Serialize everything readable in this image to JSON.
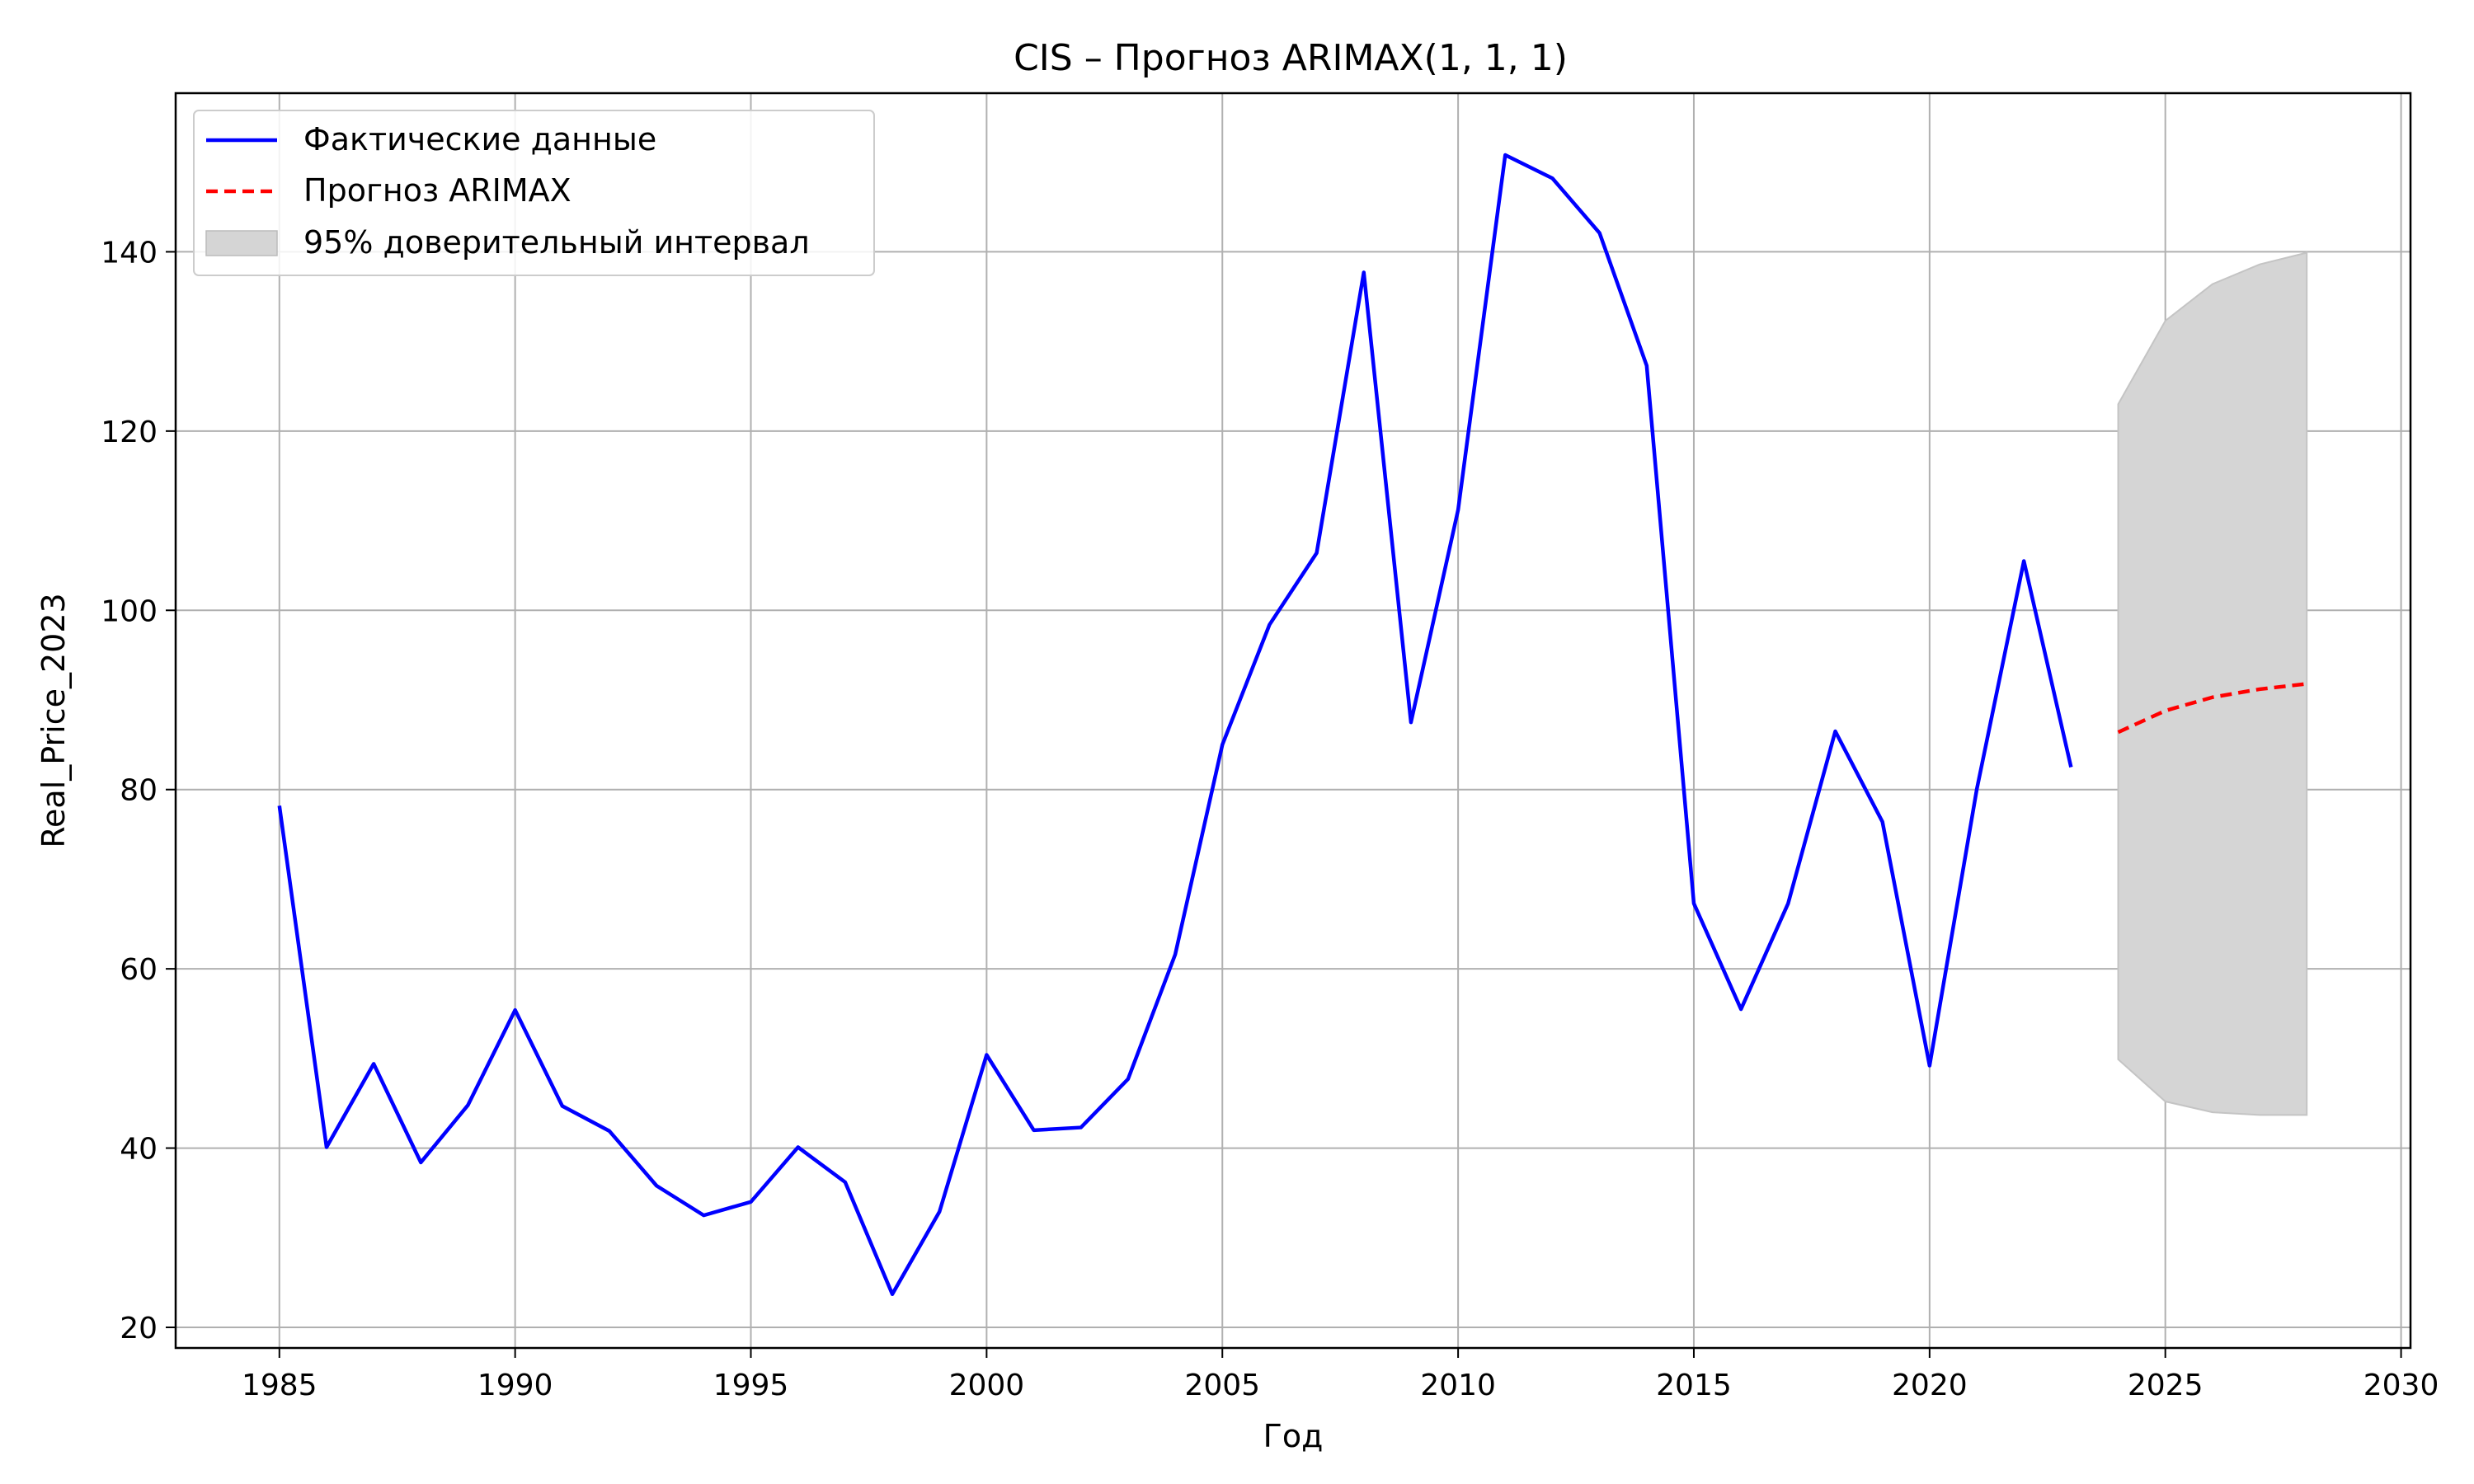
{
  "chart_data": {
    "type": "line",
    "title": "CIS – Прогноз ARIMAX(1, 1, 1)",
    "xlabel": "Год",
    "ylabel": "Real_Price_2023",
    "xlim": [
      1982.8,
      2030.2
    ],
    "ylim": [
      17.7,
      157.7
    ],
    "xticks": [
      1985,
      1990,
      1995,
      2000,
      2005,
      2010,
      2015,
      2020,
      2025,
      2030
    ],
    "yticks": [
      20,
      40,
      60,
      80,
      100,
      120,
      140
    ],
    "grid": true,
    "legend_position": "top-left",
    "series": [
      {
        "name": "Фактические данные",
        "style": "solid",
        "color": "#0000ff",
        "x": [
          1985,
          1986,
          1987,
          1988,
          1989,
          1990,
          1991,
          1992,
          1993,
          1994,
          1995,
          1996,
          1997,
          1998,
          1999,
          2000,
          2001,
          2002,
          2003,
          2004,
          2005,
          2006,
          2007,
          2008,
          2009,
          2010,
          2011,
          2012,
          2013,
          2014,
          2015,
          2016,
          2017,
          2018,
          2019,
          2020,
          2021,
          2022,
          2023
        ],
        "values": [
          78.2,
          40.1,
          49.4,
          38.4,
          44.8,
          55.4,
          44.7,
          41.9,
          35.8,
          32.5,
          34.0,
          40.1,
          36.2,
          23.7,
          32.9,
          50.4,
          42.0,
          42.3,
          47.7,
          61.6,
          85.0,
          98.4,
          106.4,
          137.7,
          87.5,
          111.2,
          150.8,
          148.2,
          142.1,
          127.3,
          67.3,
          55.5,
          67.3,
          86.5,
          76.4,
          49.2,
          80.0,
          105.5,
          82.5
        ]
      },
      {
        "name": "Прогноз ARIMAX",
        "style": "dashed",
        "color": "#ff0000",
        "x": [
          2024,
          2025,
          2026,
          2027,
          2028
        ],
        "values": [
          86.4,
          88.8,
          90.3,
          91.2,
          91.8
        ]
      }
    ],
    "interval": {
      "name": "95% доверительный интервал",
      "color": "#d5d5d5",
      "x": [
        2024,
        2025,
        2026,
        2027,
        2028
      ],
      "lower": [
        49.9,
        45.2,
        44.0,
        43.7,
        43.7
      ],
      "upper": [
        123.0,
        132.3,
        136.4,
        138.6,
        139.9
      ]
    }
  }
}
